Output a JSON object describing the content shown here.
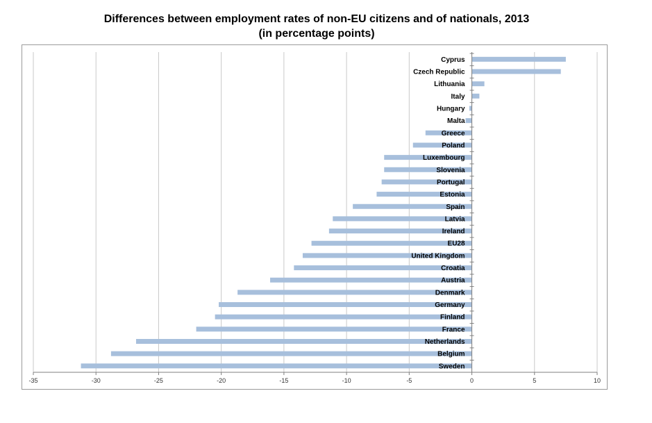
{
  "chart_data": {
    "type": "bar",
    "orientation": "horizontal",
    "title": "Differences between employment rates of non-EU citizens and of nationals, 2013",
    "subtitle": "(in percentage points)",
    "xlim": [
      -35,
      10
    ],
    "xticks": [
      -35,
      -30,
      -25,
      -20,
      -15,
      -10,
      -5,
      0,
      5,
      10
    ],
    "grid": true,
    "bar_color": "#a7bfdc",
    "categories": [
      "Cyprus",
      "Czech Republic",
      "Lithuania",
      "Italy",
      "Hungary",
      "Malta",
      "Greece",
      "Poland",
      "Luxembourg",
      "Slovenia",
      "Portugal",
      "Estonia",
      "Spain",
      "Latvia",
      "Ireland",
      "EU28",
      "United Kingdom",
      "Croatia",
      "Austria",
      "Denmark",
      "Germany",
      "Finland",
      "France",
      "Netherlands",
      "Belgium",
      "Sweden"
    ],
    "values": [
      7.5,
      7.1,
      1.0,
      0.6,
      -0.2,
      -0.5,
      -3.7,
      -4.7,
      -7.0,
      -7.0,
      -7.2,
      -7.6,
      -9.5,
      -11.1,
      -11.4,
      -12.8,
      -13.5,
      -14.2,
      -16.1,
      -18.7,
      -20.2,
      -20.5,
      -22.0,
      -26.8,
      -28.8,
      -31.2
    ]
  }
}
